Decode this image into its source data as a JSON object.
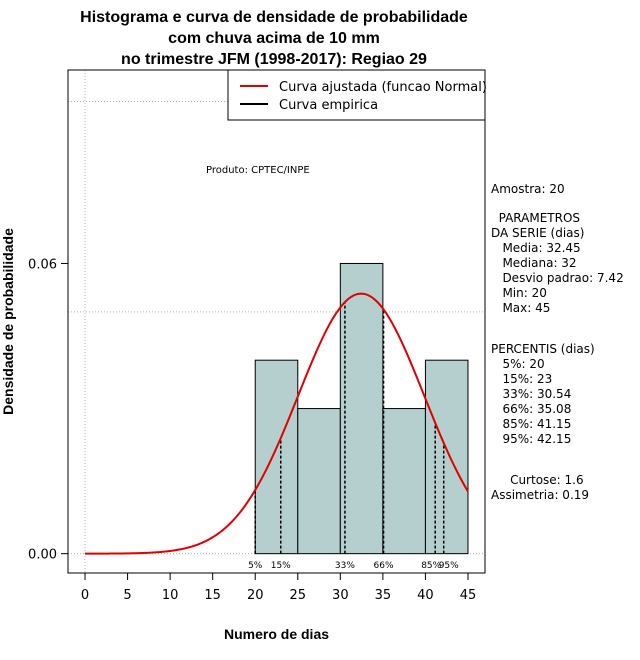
{
  "chart_data": {
    "type": "bar",
    "title": [
      "Histograma e curva de densidade de probabilidade",
      "com chuva acima de 10 mm",
      "no trimestre JFM (1998-2017): Regiao 29"
    ],
    "xlabel": "Numero de dias",
    "ylabel": "Densidade de probabilidade",
    "xlim": [
      -2,
      47
    ],
    "ylim": [
      -0.004,
      0.1
    ],
    "x_ticks": [
      "0",
      "5",
      "10",
      "15",
      "20",
      "25",
      "30",
      "35",
      "40",
      "45"
    ],
    "y_ticks": [
      "0.00",
      "0.06"
    ],
    "histogram": {
      "bins": [
        [
          20,
          25
        ],
        [
          25,
          30
        ],
        [
          30,
          35
        ],
        [
          35,
          40
        ],
        [
          40,
          45
        ]
      ],
      "values": [
        0.04,
        0.03,
        0.06,
        0.03,
        0.04
      ],
      "color": "#b5cfcf"
    },
    "fitted_normal": {
      "mean": 32.45,
      "sd": 7.42,
      "x_range": [
        0,
        45
      ],
      "color": "#e00000"
    },
    "grid_lines_y": [
      0.0935,
      0.05
    ],
    "legend": {
      "position": "top-right",
      "entries": [
        {
          "label": "Curva ajustada (funcao Normal)",
          "color": "#e00000"
        },
        {
          "label": "Curva empirica",
          "color": "#000000"
        }
      ]
    },
    "annotation": "Produto: CPTEC/INPE",
    "percentiles": [
      {
        "label": "5%",
        "x": 20
      },
      {
        "label": "15%",
        "x": 23
      },
      {
        "label": "33%",
        "x": 30.54
      },
      {
        "label": "66%",
        "x": 35.08
      },
      {
        "label": "85%",
        "x": 41.15
      },
      {
        "label": "95%",
        "x": 42.15
      }
    ]
  },
  "stats": {
    "amostra": "Amostra: 20",
    "params": "  PARAMETROS\nDA SERIE (dias)\n   Media: 32.45\n   Mediana: 32\n   Desvio padrao: 7.42\n   Min: 20\n   Max: 45",
    "percentis": "PERCENTIS (dias)\n   5%: 20\n   15%: 23\n   33%: 30.54\n   66%: 35.08\n   85%: 41.15\n   95%: 42.15",
    "extra": "     Curtose: 1.6\nAssimetria: 0.19"
  }
}
